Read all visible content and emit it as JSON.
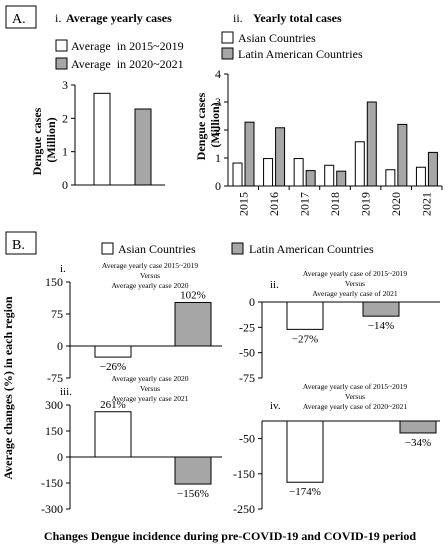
{
  "colors": {
    "white_bar": "#ffffff",
    "gray_bar": "#a6a6a6",
    "stroke": "#000000"
  },
  "section_a_label": "A.",
  "section_b_label": "B.",
  "caption": "Changes Dengue incidence during pre-COVID-19 and COVID-19 period",
  "chart_data": [
    {
      "id": "a-i",
      "type": "bar",
      "roman": "i.",
      "title": "Average yearly cases",
      "ylabel": "Dengue cases (Million)",
      "ylim": [
        0,
        3
      ],
      "yticks": [
        "0",
        "1",
        "2",
        "3"
      ],
      "legend": [
        "Average  in 2015~2019",
        "Average  in 2020~2021"
      ],
      "legend_placement": "top",
      "categories": [
        "Average  in 2015~2019",
        "Average  in 2020~2021"
      ],
      "values": [
        2.75,
        2.28
      ]
    },
    {
      "id": "a-ii",
      "type": "bar",
      "roman": "ii.",
      "title": "Yearly total cases",
      "ylabel": "Dengue cases (Million)",
      "ylim": [
        0,
        4
      ],
      "yticks": [
        "0",
        "1",
        "2",
        "3",
        "4"
      ],
      "legend": [
        "Asian Countries",
        "Latin American Countries"
      ],
      "legend_placement": "top",
      "categories": [
        "2015",
        "2016",
        "2017",
        "2018",
        "2019",
        "2020",
        "2021"
      ],
      "series": [
        {
          "name": "Asian Countries",
          "values": [
            0.82,
            0.98,
            0.98,
            0.74,
            1.58,
            0.58,
            0.67
          ]
        },
        {
          "name": "Latin American Countries",
          "values": [
            2.28,
            2.08,
            0.55,
            0.53,
            3.0,
            2.2,
            1.2
          ]
        }
      ]
    },
    {
      "id": "b",
      "type": "bar",
      "legend": [
        "Asian Countries",
        "Latin American Countries"
      ],
      "legend_placement": "top",
      "ylabel": "Average changes (%) in each region",
      "panels": [
        {
          "id": "b-i",
          "roman": "i.",
          "note": [
            "Average yearly case 2015~2019",
            "Versus",
            "Average yearly case 2020"
          ],
          "ylim": [
            -75,
            150
          ],
          "yticks": [
            "150",
            "75",
            "0",
            "-75"
          ],
          "values": [
            -26,
            102
          ],
          "labels": [
            "−26%",
            "102%"
          ]
        },
        {
          "id": "b-ii",
          "roman": "ii.",
          "note": [
            "Average yearly case of 2015~2019",
            "Versus",
            "Average yearly case of 2021"
          ],
          "ylim": [
            -75,
            0
          ],
          "yticks": [
            "0",
            "-25",
            "-50",
            "-75"
          ],
          "values": [
            -27,
            -14
          ],
          "labels": [
            "−27%",
            "−14%"
          ]
        },
        {
          "id": "b-iii",
          "roman": "iii.",
          "note": [
            "Average yearly case 2020",
            "Versus",
            "Average yearly case 2021"
          ],
          "ylim": [
            -300,
            300
          ],
          "yticks": [
            "300",
            "150",
            "0",
            "-150",
            "-300"
          ],
          "values": [
            261,
            -156
          ],
          "labels": [
            "261%",
            "−156%"
          ]
        },
        {
          "id": "b-iv",
          "roman": "iv.",
          "note": [
            "Average yearly case of 2015~2019",
            "Versus",
            "Average yearly case of 2020~2021"
          ],
          "ylim": [
            -250,
            0
          ],
          "yticks": [
            "-50",
            "-150",
            "-250"
          ],
          "ytick_values": [
            -50,
            -150,
            -250
          ],
          "values": [
            -174,
            -34
          ],
          "labels": [
            "−174%",
            "−34%"
          ]
        }
      ]
    }
  ]
}
